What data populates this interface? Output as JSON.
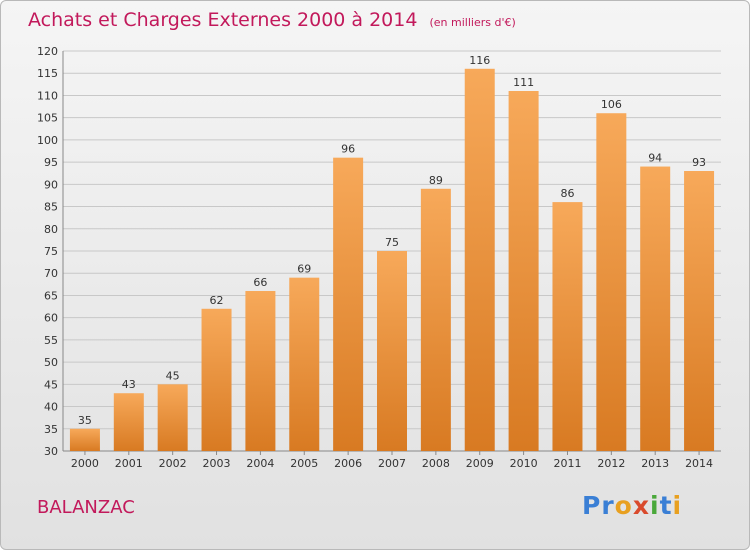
{
  "title": "Achats et Charges Externes 2000 à 2014",
  "unit_note": "(en milliers d'€)",
  "place_name": "BALANZAC",
  "logo": {
    "text": "Proxiti",
    "letter_colors": [
      "#3a7fd5",
      "#3a7fd5",
      "#e8a020",
      "#d94a2c",
      "#4aa83a",
      "#3a7fd5",
      "#e8a020"
    ]
  },
  "colors": {
    "title": "#c2195b",
    "bar_light": "#f7a95a",
    "bar_dark": "#d87a22",
    "axis": "#888888",
    "grid": "#c8c8c8"
  },
  "chart_data": {
    "type": "bar",
    "categories": [
      "2000",
      "2001",
      "2002",
      "2003",
      "2004",
      "2005",
      "2006",
      "2007",
      "2008",
      "2009",
      "2010",
      "2011",
      "2012",
      "2013",
      "2014"
    ],
    "values": [
      35,
      43,
      45,
      62,
      66,
      69,
      96,
      75,
      89,
      116,
      111,
      86,
      106,
      94,
      93
    ],
    "ylim": [
      30,
      120
    ],
    "ytick_step": 5,
    "grid": true,
    "legend": "none"
  }
}
